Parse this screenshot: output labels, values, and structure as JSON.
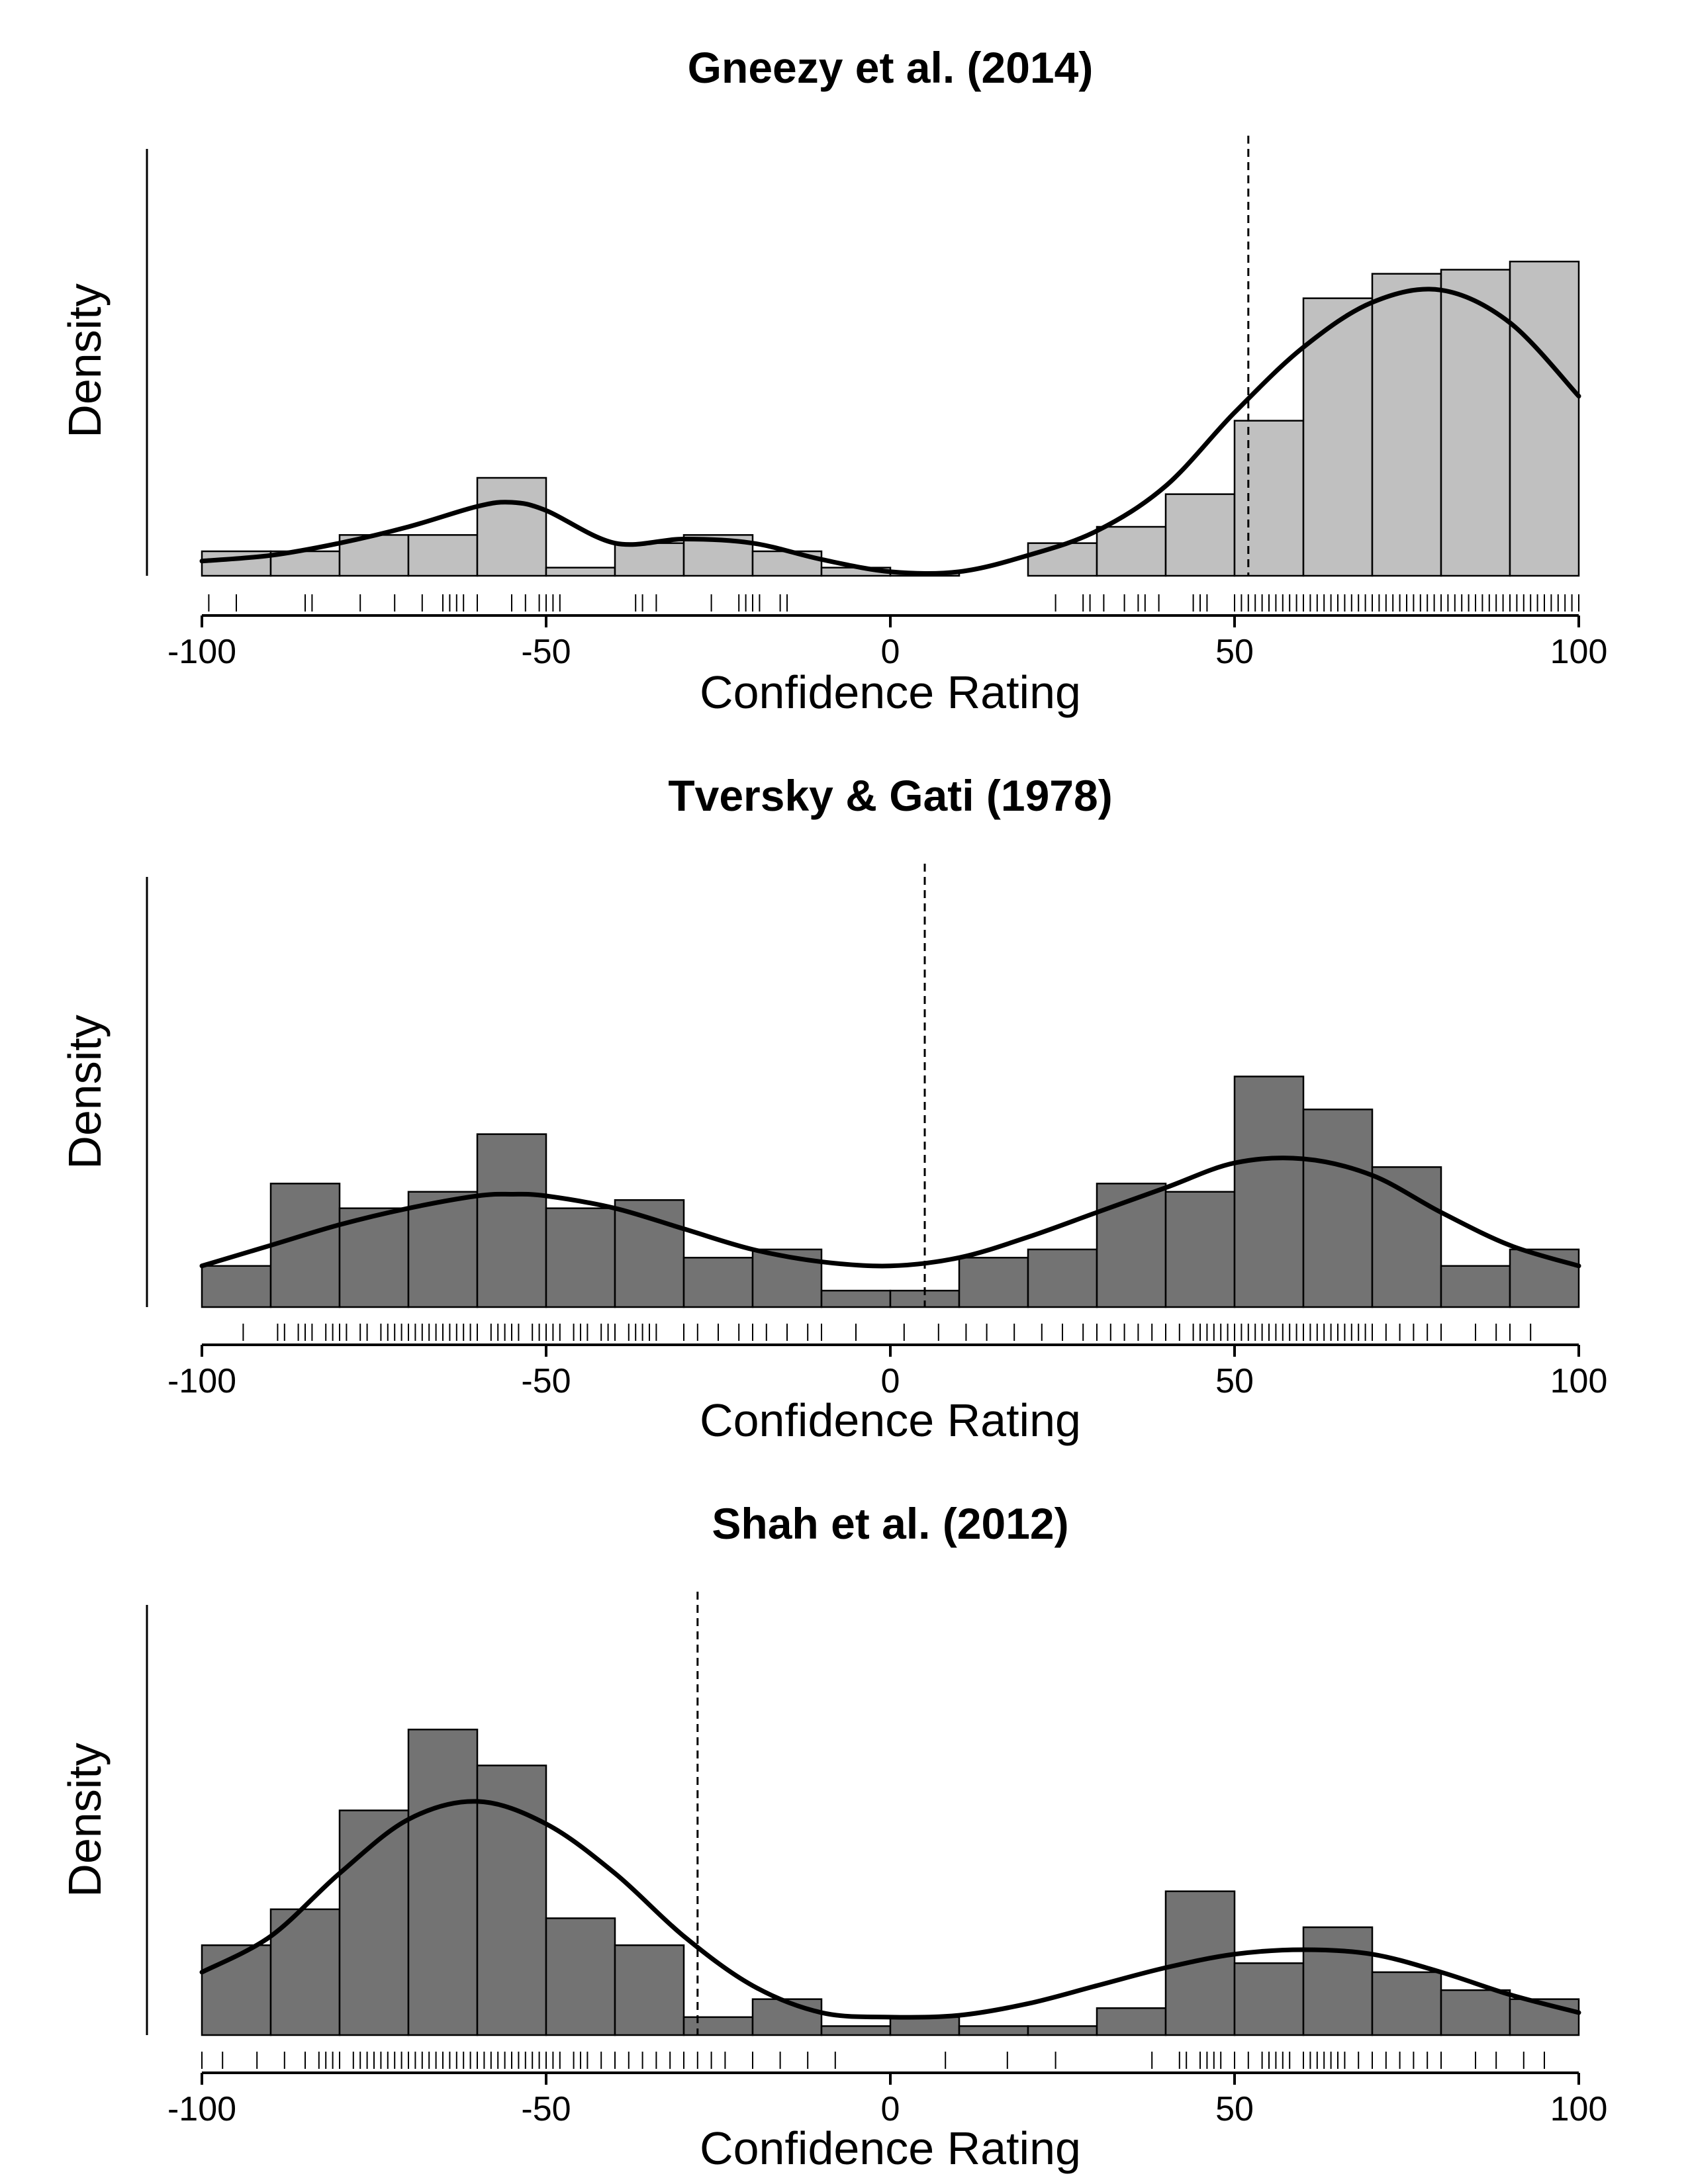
{
  "chart_data": [
    {
      "type": "bar",
      "title": "Gneezy et al. (2014)",
      "xlabel": "Confidence Rating",
      "ylabel": "Density",
      "xlim": [
        -100,
        100
      ],
      "x_ticks": [
        "-100",
        "-50",
        "0",
        "50",
        "100"
      ],
      "bar_color": "#c0c0c0",
      "bin_edges": [
        -100,
        -90,
        -80,
        -70,
        -60,
        -50,
        -40,
        -30,
        -20,
        -10,
        0,
        10,
        20,
        30,
        40,
        50,
        60,
        70,
        80,
        90,
        100
      ],
      "values": [
        0.003,
        0.003,
        0.005,
        0.005,
        0.012,
        0.001,
        0.004,
        0.005,
        0.003,
        0.001,
        0.0003,
        0.0,
        0.004,
        0.006,
        0.01,
        0.019,
        0.034,
        0.037,
        0.0375,
        0.0385
      ],
      "ymax": 0.045,
      "density_curve": {
        "x": [
          -100,
          -90,
          -80,
          -70,
          -60,
          -55,
          -50,
          -40,
          -30,
          -20,
          -10,
          0,
          10,
          20,
          30,
          40,
          50,
          60,
          70,
          80,
          90,
          100
        ],
        "y": [
          0.0018,
          0.0025,
          0.004,
          0.006,
          0.0085,
          0.009,
          0.008,
          0.004,
          0.0045,
          0.004,
          0.002,
          0.0005,
          0.0005,
          0.0025,
          0.0055,
          0.011,
          0.02,
          0.028,
          0.0335,
          0.035,
          0.031,
          0.022
        ]
      },
      "reference_line_x": 52,
      "rug": [
        -99,
        -95,
        -85,
        -84,
        -77,
        -72,
        -68,
        -65,
        -64,
        -63,
        -62,
        -60,
        -55,
        -53,
        -51,
        -50,
        -49,
        -48,
        -37,
        -36,
        -34,
        -26,
        -22,
        -21,
        -20,
        -19,
        -16,
        -15,
        24,
        28,
        29,
        31,
        34,
        36,
        37,
        39,
        44,
        45,
        46,
        50,
        51,
        52,
        53,
        54,
        55,
        56,
        57,
        58,
        59,
        60,
        61,
        62,
        63,
        64,
        65,
        66,
        67,
        68,
        69,
        70,
        71,
        72,
        73,
        74,
        75,
        76,
        77,
        78,
        79,
        80,
        81,
        82,
        83,
        84,
        85,
        86,
        87,
        88,
        89,
        90,
        91,
        92,
        93,
        94,
        95,
        96,
        97,
        98,
        99,
        100
      ]
    },
    {
      "type": "bar",
      "title": "Tversky & Gati (1978)",
      "xlabel": "Confidence Rating",
      "ylabel": "Density",
      "xlim": [
        -100,
        100
      ],
      "x_ticks": [
        "-100",
        "-50",
        "0",
        "50",
        "100"
      ],
      "bar_color": "#737373",
      "bin_edges": [
        -100,
        -90,
        -80,
        -70,
        -60,
        -50,
        -40,
        -30,
        -20,
        -10,
        0,
        10,
        20,
        30,
        40,
        50,
        60,
        70,
        80,
        90,
        100
      ],
      "values": [
        0.005,
        0.015,
        0.012,
        0.014,
        0.021,
        0.012,
        0.013,
        0.006,
        0.007,
        0.002,
        0.002,
        0.006,
        0.007,
        0.015,
        0.014,
        0.028,
        0.024,
        0.017,
        0.005,
        0.007
      ],
      "ymax": 0.045,
      "density_curve": {
        "x": [
          -100,
          -90,
          -80,
          -70,
          -60,
          -55,
          -50,
          -40,
          -30,
          -20,
          -10,
          0,
          10,
          20,
          30,
          40,
          50,
          60,
          70,
          80,
          90,
          100
        ],
        "y": [
          0.005,
          0.0075,
          0.01,
          0.012,
          0.0135,
          0.0137,
          0.0135,
          0.012,
          0.0095,
          0.007,
          0.0055,
          0.005,
          0.006,
          0.0085,
          0.0115,
          0.0145,
          0.0175,
          0.018,
          0.016,
          0.0115,
          0.0075,
          0.005
        ]
      },
      "reference_line_x": 5,
      "rug": [
        -94,
        -89,
        -88,
        -86,
        -85,
        -84,
        -82,
        -81,
        -80,
        -79,
        -77,
        -76,
        -74,
        -73,
        -72,
        -71,
        -70,
        -69,
        -68,
        -67,
        -66,
        -65,
        -64,
        -63,
        -62,
        -61,
        -60,
        -58,
        -57,
        -56,
        -55,
        -54,
        -52,
        -51,
        -50,
        -49,
        -48,
        -46,
        -45,
        -44,
        -42,
        -41,
        -40,
        -38,
        -37,
        -36,
        -35,
        -34,
        -30,
        -28,
        -25,
        -22,
        -20,
        -18,
        -15,
        -12,
        -10,
        -5,
        2,
        7,
        11,
        14,
        18,
        22,
        25,
        28,
        30,
        32,
        34,
        36,
        38,
        40,
        42,
        44,
        45,
        46,
        47,
        48,
        49,
        50,
        51,
        52,
        53,
        54,
        55,
        56,
        57,
        58,
        59,
        60,
        61,
        62,
        63,
        64,
        65,
        66,
        67,
        68,
        69,
        70,
        72,
        74,
        76,
        78,
        80,
        85,
        88,
        90,
        93
      ]
    },
    {
      "type": "bar",
      "title": "Shah et al. (2012)",
      "xlabel": "Confidence Rating",
      "ylabel": "Density",
      "xlim": [
        -100,
        100
      ],
      "x_ticks": [
        "-100",
        "-50",
        "0",
        "50",
        "100"
      ],
      "bar_color": "#737373",
      "bin_edges": [
        -100,
        -90,
        -80,
        -70,
        -60,
        -50,
        -40,
        -30,
        -20,
        -10,
        0,
        10,
        20,
        30,
        40,
        50,
        60,
        70,
        80,
        90,
        100
      ],
      "values": [
        0.01,
        0.014,
        0.025,
        0.034,
        0.03,
        0.013,
        0.01,
        0.002,
        0.004,
        0.001,
        0.002,
        0.001,
        0.001,
        0.003,
        0.016,
        0.008,
        0.012,
        0.007,
        0.005,
        0.004
      ],
      "ymax": 0.0405,
      "density_curve": {
        "x": [
          -100,
          -90,
          -80,
          -70,
          -60,
          -50,
          -40,
          -30,
          -20,
          -10,
          0,
          10,
          20,
          30,
          40,
          50,
          60,
          70,
          80,
          90,
          100
        ],
        "y": [
          0.007,
          0.011,
          0.018,
          0.024,
          0.026,
          0.0235,
          0.018,
          0.011,
          0.0055,
          0.0025,
          0.002,
          0.0022,
          0.0035,
          0.0055,
          0.0075,
          0.009,
          0.0095,
          0.009,
          0.007,
          0.0045,
          0.0025
        ]
      },
      "reference_line_x": -28,
      "rug": [
        -100,
        -97,
        -92,
        -88,
        -85,
        -83,
        -82,
        -81,
        -80,
        -78,
        -77,
        -76,
        -75,
        -74,
        -73,
        -72,
        -71,
        -70,
        -69,
        -68,
        -67,
        -66,
        -65,
        -64,
        -63,
        -62,
        -61,
        -60,
        -59,
        -58,
        -57,
        -56,
        -55,
        -54,
        -53,
        -52,
        -51,
        -50,
        -49,
        -48,
        -46,
        -45,
        -44,
        -42,
        -40,
        -38,
        -36,
        -34,
        -32,
        -30,
        -28,
        -26,
        -24,
        -20,
        -16,
        -12,
        -8,
        8,
        17,
        24,
        38,
        42,
        43,
        45,
        46,
        47,
        48,
        50,
        52,
        54,
        55,
        56,
        57,
        58,
        60,
        61,
        62,
        63,
        64,
        65,
        66,
        68,
        70,
        72,
        74,
        76,
        78,
        80,
        85,
        88,
        92,
        95
      ]
    }
  ]
}
